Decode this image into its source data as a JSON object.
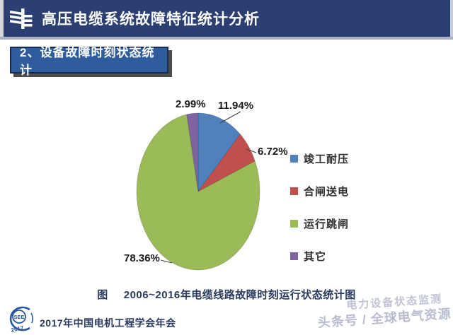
{
  "header": {
    "title": "高压电缆系统故障特征统计分析"
  },
  "section_badge": {
    "label": "2、设备故障时刻状态统计"
  },
  "chart_data": {
    "type": "pie",
    "title": "2006~2016年电缆线路故障时刻运行状态统计图",
    "legend_position": "right",
    "start_angle_deg": 0,
    "slices": [
      {
        "label": "竣工耐压",
        "value": 11.94,
        "pct_label": "11.94%",
        "color": "#4f81bd"
      },
      {
        "label": "合闸送电",
        "value": 6.72,
        "pct_label": "6.72%",
        "color": "#c0504d"
      },
      {
        "label": "运行跳闸",
        "value": 78.36,
        "pct_label": "78.36%",
        "color": "#9bbb59"
      },
      {
        "label": "其它",
        "value": 2.99,
        "pct_label": "2.99%",
        "color": "#8064a2"
      }
    ]
  },
  "caption": {
    "prefix": "图",
    "text": "2006~2016年电缆线路故障时刻运行状态统计图"
  },
  "footer": {
    "conference": "2017年中国电机工程学会年会",
    "logo_text": "SEE",
    "logo_year": "2017"
  },
  "watermark": {
    "line1": "电力设备状态监测",
    "line2": "头条号 / 全球电气资源"
  }
}
